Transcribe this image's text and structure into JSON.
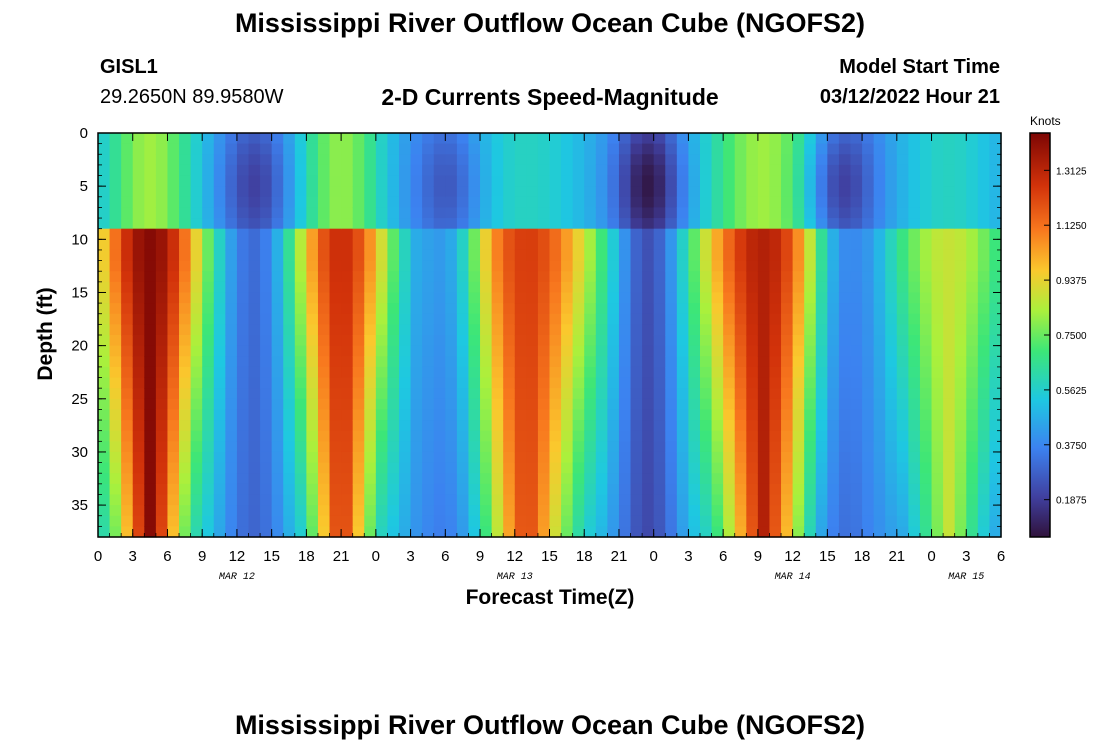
{
  "page": {
    "title": "Mississippi River Outflow Ocean Cube (NGOFS2)",
    "title_repeat": "Mississippi River Outflow Ocean Cube (NGOFS2)",
    "station_id": "GISL1",
    "coordinates": "29.2650N  89.9580W",
    "subtitle": "2-D Currents Speed-Magnitude",
    "model_start_label": "Model Start Time",
    "model_start_value": "03/12/2022 Hour 21"
  },
  "chart_data": {
    "type": "heatmap",
    "title": "2-D Currents Speed-Magnitude",
    "xlabel": "Forecast Time(Z)",
    "ylabel": "Depth (ft)",
    "x_range_hours": [
      0,
      78
    ],
    "y_range_ft": [
      0,
      38
    ],
    "x_ticks": [
      {
        "h": 0,
        "label": "0"
      },
      {
        "h": 3,
        "label": "3"
      },
      {
        "h": 6,
        "label": "6"
      },
      {
        "h": 9,
        "label": "9"
      },
      {
        "h": 12,
        "label": "12"
      },
      {
        "h": 15,
        "label": "15"
      },
      {
        "h": 18,
        "label": "18"
      },
      {
        "h": 21,
        "label": "21"
      },
      {
        "h": 24,
        "label": "0"
      },
      {
        "h": 27,
        "label": "3"
      },
      {
        "h": 30,
        "label": "6"
      },
      {
        "h": 33,
        "label": "9"
      },
      {
        "h": 36,
        "label": "12"
      },
      {
        "h": 39,
        "label": "15"
      },
      {
        "h": 42,
        "label": "18"
      },
      {
        "h": 45,
        "label": "21"
      },
      {
        "h": 48,
        "label": "0"
      },
      {
        "h": 51,
        "label": "3"
      },
      {
        "h": 54,
        "label": "6"
      },
      {
        "h": 57,
        "label": "9"
      },
      {
        "h": 60,
        "label": "12"
      },
      {
        "h": 63,
        "label": "15"
      },
      {
        "h": 66,
        "label": "18"
      },
      {
        "h": 69,
        "label": "21"
      },
      {
        "h": 72,
        "label": "0"
      },
      {
        "h": 75,
        "label": "3"
      },
      {
        "h": 78,
        "label": "6"
      }
    ],
    "date_labels": [
      {
        "h": 12,
        "label": "MAR 12"
      },
      {
        "h": 36,
        "label": "MAR 13"
      },
      {
        "h": 60,
        "label": "MAR 14"
      },
      {
        "h": 75,
        "label": "MAR 15"
      }
    ],
    "y_ticks": [
      0,
      5,
      10,
      15,
      20,
      25,
      30,
      35
    ],
    "colorbar": {
      "title": "Knots",
      "min": 0.06,
      "max": 1.44,
      "tick_values": [
        1.3125,
        1.125,
        0.9375,
        0.75,
        0.5625,
        0.375,
        0.1875
      ],
      "tick_labels": [
        "1.3125",
        "1.1250",
        "0.9375",
        "0.7500",
        "0.5625",
        "0.3750",
        "0.1875"
      ]
    },
    "ebb_flood_pulses": [
      {
        "center_h": 4.5,
        "half_width_h": 6.0,
        "peak_knots": 1.42,
        "surface_knots": 0.82
      },
      {
        "center_h": 21.0,
        "half_width_h": 5.5,
        "peak_knots": 1.28,
        "surface_knots": 0.8
      },
      {
        "center_h": 37.0,
        "half_width_h": 8.0,
        "peak_knots": 1.24,
        "surface_knots": 0.58
      },
      {
        "center_h": 57.5,
        "half_width_h": 7.5,
        "peak_knots": 1.33,
        "surface_knots": 0.82
      },
      {
        "center_h": 73.5,
        "half_width_h": 6.5,
        "peak_knots": 0.88,
        "surface_knots": 0.58
      }
    ],
    "slack_minima": [
      {
        "center_h": 13.5,
        "knots": 0.2
      },
      {
        "center_h": 30.0,
        "knots": 0.26
      },
      {
        "center_h": 47.5,
        "knots": 0.08
      },
      {
        "center_h": 64.5,
        "knots": 0.2
      }
    ]
  }
}
